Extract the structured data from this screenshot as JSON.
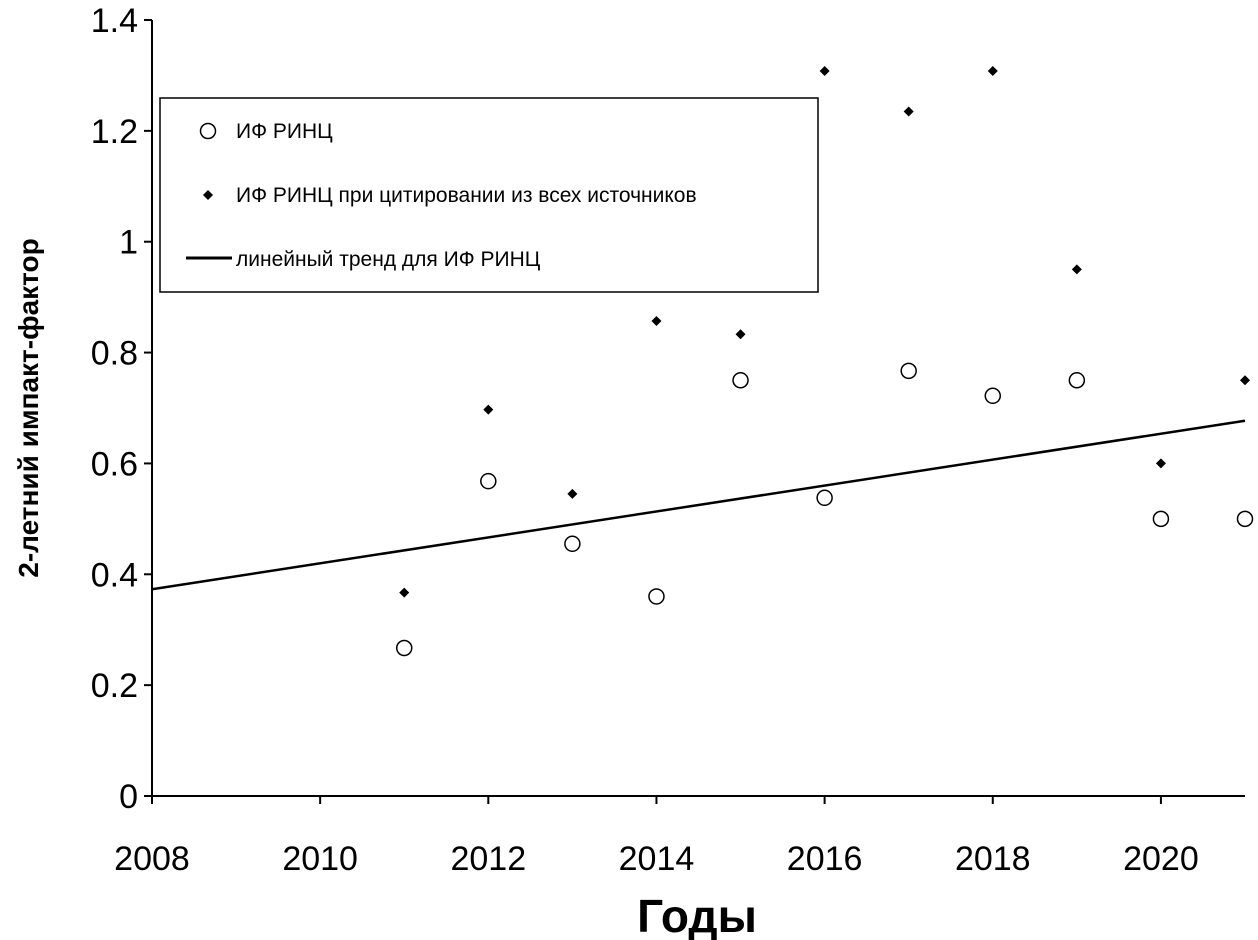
{
  "chart_data": {
    "type": "scatter",
    "xlabel": "Годы",
    "ylabel": "2-летний импакт-фактор",
    "xlim": [
      2008,
      2021
    ],
    "ylim": [
      0,
      1.4
    ],
    "x_ticks": [
      2008,
      2010,
      2012,
      2014,
      2016,
      2018,
      2020
    ],
    "x_tick_labels": [
      "2008",
      "2010",
      "2012",
      "2014",
      "2016",
      "2018",
      "2020"
    ],
    "y_ticks": [
      0,
      0.2,
      0.4,
      0.6,
      0.8,
      1,
      1.2,
      1.4
    ],
    "y_tick_labels": [
      "0",
      "0.2",
      "0.4",
      "0.6",
      "0.8",
      "1",
      "1.2",
      "1.4"
    ],
    "grid": false,
    "legend_position": "top-left",
    "series": [
      {
        "name": "ИФ РИНЦ",
        "marker": "open-circle",
        "color": "#000000",
        "x": [
          2011,
          2012,
          2013,
          2014,
          2015,
          2016,
          2017,
          2018,
          2019,
          2020,
          2021
        ],
        "y": [
          0.267,
          0.568,
          0.455,
          0.36,
          0.75,
          0.538,
          0.767,
          0.722,
          0.75,
          0.5,
          0.5
        ]
      },
      {
        "name": "ИФ РИНЦ при цитировании из всех источников",
        "marker": "filled-diamond",
        "color": "#000000",
        "x": [
          2011,
          2012,
          2013,
          2014,
          2015,
          2016,
          2017,
          2018,
          2019,
          2020,
          2021
        ],
        "y": [
          0.367,
          0.697,
          0.545,
          0.857,
          0.833,
          1.308,
          1.235,
          1.308,
          0.95,
          0.6,
          0.75
        ]
      },
      {
        "name": "линейный тренд для ИФ РИНЦ",
        "type": "line",
        "color": "#000000",
        "x": [
          2008,
          2021
        ],
        "y": [
          0.373,
          0.677
        ]
      }
    ]
  }
}
